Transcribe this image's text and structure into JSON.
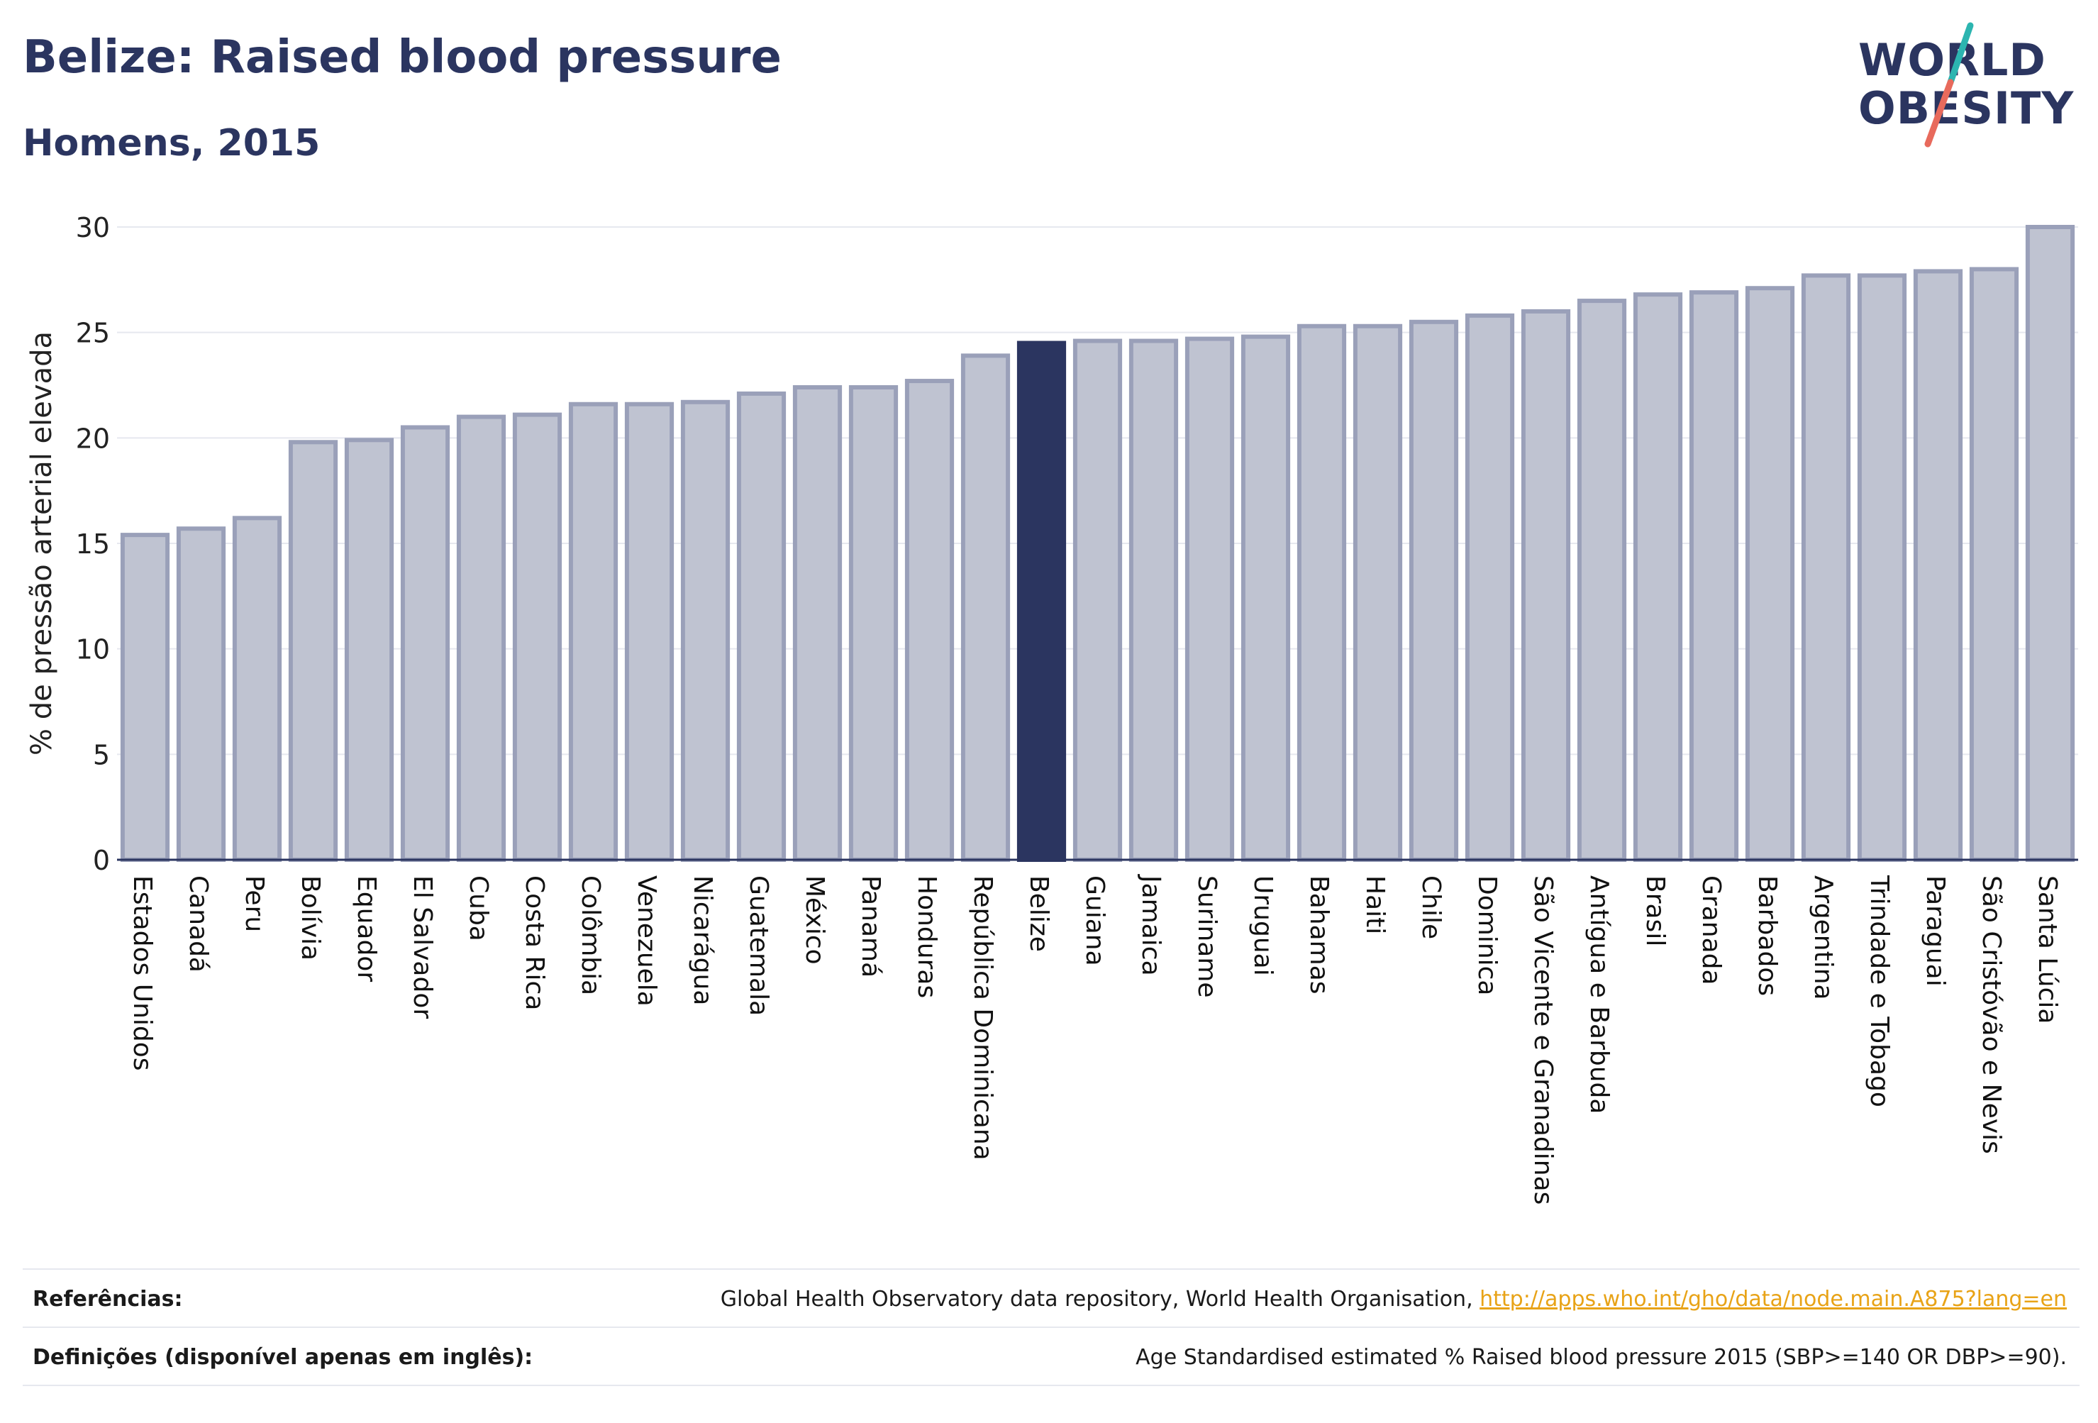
{
  "header": {
    "title": "Belize: Raised blood pressure",
    "subtitle": "Homens, 2015"
  },
  "logo": {
    "line1": "WORLD",
    "line2": "OBESITY",
    "slash_color_top": "#2cb5b0",
    "slash_color_bottom": "#e86a5c"
  },
  "colors": {
    "bar_fill": "#bfc3d1",
    "bar_stroke": "#9aa0b9",
    "highlight": "#2b3560",
    "grid": "#e6e8ef",
    "axis": "#2b3560",
    "link": "#e8a317"
  },
  "chart_data": {
    "type": "bar",
    "ylabel": "% de pressão arterial elevada",
    "ylim": [
      0,
      30
    ],
    "yticks": [
      0,
      5,
      10,
      15,
      20,
      25,
      30
    ],
    "grid": true,
    "highlight": "Belize",
    "categories": [
      "Estados Unidos",
      "Canadá",
      "Peru",
      "Bolívia",
      "Equador",
      "El Salvador",
      "Cuba",
      "Costa Rica",
      "Colômbia",
      "Venezuela",
      "Nicarágua",
      "Guatemala",
      "México",
      "Panamá",
      "Honduras",
      "República Dominicana",
      "Belize",
      "Guiana",
      "Jamaica",
      "Suriname",
      "Uruguai",
      "Bahamas",
      "Haiti",
      "Chile",
      "Dominica",
      "São Vicente e Granadinas",
      "Antígua e Barbuda",
      "Brasil",
      "Granada",
      "Barbados",
      "Argentina",
      "Trindade e Tobago",
      "Paraguai",
      "São Cristóvão e Nevis",
      "Santa Lúcia"
    ],
    "values": [
      15.4,
      15.7,
      16.2,
      19.8,
      19.9,
      20.5,
      21.0,
      21.1,
      21.6,
      21.6,
      21.7,
      22.1,
      22.4,
      22.4,
      22.7,
      23.9,
      24.5,
      24.6,
      24.6,
      24.7,
      24.8,
      25.3,
      25.3,
      25.5,
      25.8,
      26.0,
      26.5,
      26.8,
      26.9,
      27.1,
      27.7,
      27.7,
      27.9,
      28.0,
      30.0
    ]
  },
  "footer": {
    "references_label": "Referências:",
    "references_text": "Global Health Observatory data repository, World Health Organisation, ",
    "references_link": "http://apps.who.int/gho/data/node.main.A875?lang=en",
    "definitions_label": "Definições (disponível apenas em inglês):",
    "definitions_text": "Age Standardised estimated % Raised blood pressure 2015 (SBP>=140 OR DBP>=90)."
  }
}
